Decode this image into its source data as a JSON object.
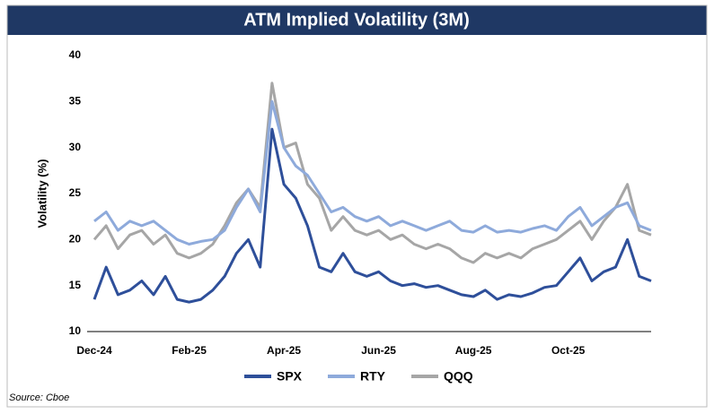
{
  "chart_data": {
    "type": "line",
    "title": "ATM Implied Volatility (3M)",
    "y_label": "Volatility (%)",
    "source": "Source: Cboe",
    "categories": [
      "Dec-24",
      null,
      null,
      null,
      null,
      null,
      null,
      null,
      "Feb-25",
      null,
      null,
      null,
      null,
      null,
      null,
      null,
      "Apr-25",
      null,
      null,
      null,
      null,
      null,
      null,
      null,
      "Jun-25",
      null,
      null,
      null,
      null,
      null,
      null,
      null,
      "Aug-25",
      null,
      null,
      null,
      null,
      null,
      null,
      null,
      "Oct-25",
      null,
      null,
      null,
      null,
      null,
      null,
      null
    ],
    "series": [
      {
        "name": "SPX",
        "color": "#2e4f9a",
        "values": [
          13.5,
          17,
          14,
          14.5,
          15.5,
          14,
          16,
          13.5,
          13.2,
          13.5,
          14.5,
          16,
          18.5,
          20,
          17,
          32,
          26,
          24.5,
          21.5,
          17,
          16.5,
          18.5,
          16.5,
          16,
          16.5,
          15.5,
          15,
          15.2,
          14.8,
          15,
          14.5,
          14,
          13.8,
          14.5,
          13.5,
          14,
          13.8,
          14.2,
          14.8,
          15,
          16.5,
          18,
          15.5,
          16.5,
          17,
          20,
          16,
          15.5
        ]
      },
      {
        "name": "RTY",
        "color": "#8eaadb",
        "values": [
          22,
          23,
          21,
          22,
          21.5,
          22,
          21,
          20,
          19.5,
          19.8,
          20,
          21,
          23.5,
          25.5,
          23,
          35,
          30,
          28,
          27,
          25,
          23,
          23.5,
          22.5,
          22,
          22.5,
          21.5,
          22,
          21.5,
          21,
          21.5,
          22,
          21,
          20.8,
          21.5,
          20.8,
          21,
          20.8,
          21.2,
          21.5,
          21,
          22.5,
          23.5,
          21.5,
          22.5,
          23.5,
          24,
          21.5,
          21
        ]
      },
      {
        "name": "QQQ",
        "color": "#a6a6a6",
        "values": [
          20,
          21.5,
          19,
          20.5,
          21,
          19.5,
          20.5,
          18.5,
          18,
          18.5,
          19.5,
          21.5,
          24,
          25.5,
          23.5,
          37,
          30,
          30.5,
          26,
          24.5,
          21,
          22.5,
          21,
          20.5,
          21,
          20,
          20.5,
          19.5,
          19,
          19.5,
          19,
          18,
          17.5,
          18.5,
          18,
          18.5,
          18,
          19,
          19.5,
          20,
          21,
          22,
          20,
          22,
          23.5,
          26,
          21,
          20.5
        ]
      }
    ],
    "ylim": [
      10,
      40
    ],
    "yticks": [
      10,
      15,
      20,
      25,
      30,
      35,
      40
    ]
  }
}
